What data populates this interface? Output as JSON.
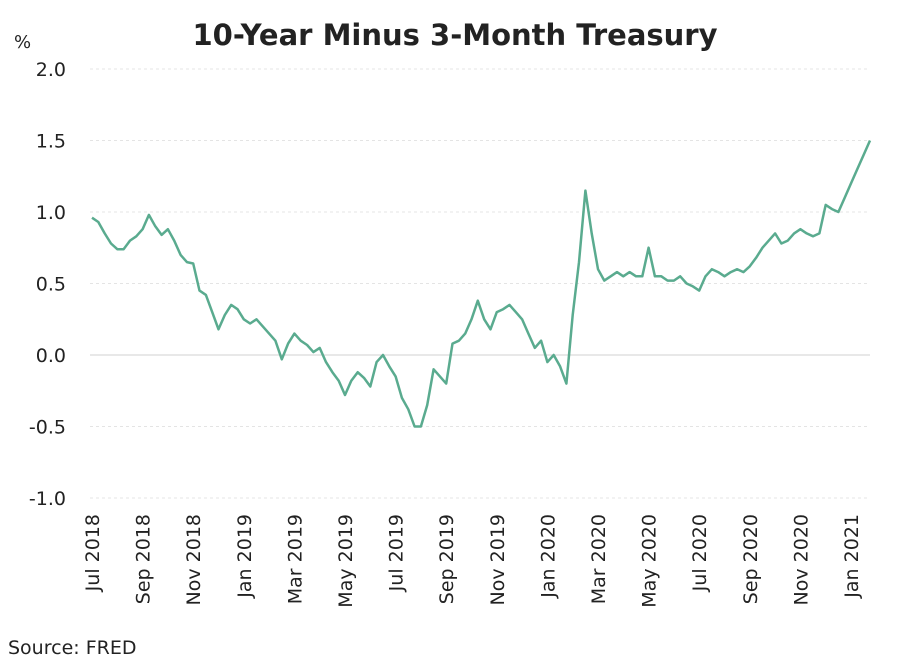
{
  "chart_data": {
    "type": "line",
    "title": "10-Year Minus 3-Month Treasury",
    "y_unit": "%",
    "source": "Source: FRED",
    "categories": [
      "Jul 2018",
      null,
      null,
      null,
      null,
      null,
      null,
      null,
      "Sep 2018",
      null,
      null,
      null,
      null,
      null,
      null,
      null,
      "Nov 2018",
      null,
      null,
      null,
      null,
      null,
      null,
      null,
      "Jan 2019",
      null,
      null,
      null,
      null,
      null,
      null,
      null,
      "Mar 2019",
      null,
      null,
      null,
      null,
      null,
      null,
      null,
      "May 2019",
      null,
      null,
      null,
      null,
      null,
      null,
      null,
      "Jul 2019",
      null,
      null,
      null,
      null,
      null,
      null,
      null,
      "Sep 2019",
      null,
      null,
      null,
      null,
      null,
      null,
      null,
      "Nov 2019",
      null,
      null,
      null,
      null,
      null,
      null,
      null,
      "Jan 2020",
      null,
      null,
      null,
      null,
      null,
      null,
      null,
      "Mar 2020",
      null,
      null,
      null,
      null,
      null,
      null,
      null,
      "May 2020",
      null,
      null,
      null,
      null,
      null,
      null,
      null,
      "Jul 2020",
      null,
      null,
      null,
      null,
      null,
      null,
      null,
      "Sep 2020",
      null,
      null,
      null,
      null,
      null,
      null,
      null,
      "Nov 2020",
      null,
      null,
      null,
      null,
      null,
      null,
      null,
      "Jan 2021",
      null,
      null,
      null
    ],
    "series": [
      {
        "name": "10-Year Minus 3-Month Treasury",
        "color": "#5aab8f",
        "values": [
          0.96,
          0.93,
          0.85,
          0.78,
          0.74,
          0.74,
          0.8,
          0.83,
          0.88,
          0.98,
          0.9,
          0.84,
          0.88,
          0.8,
          0.7,
          0.65,
          0.64,
          0.45,
          0.42,
          0.3,
          0.18,
          0.28,
          0.35,
          0.32,
          0.25,
          0.22,
          0.25,
          0.2,
          0.15,
          0.1,
          -0.03,
          0.08,
          0.15,
          0.1,
          0.07,
          0.02,
          0.05,
          -0.05,
          -0.12,
          -0.18,
          -0.28,
          -0.18,
          -0.12,
          -0.16,
          -0.22,
          -0.05,
          0.0,
          -0.08,
          -0.15,
          -0.3,
          -0.38,
          -0.5,
          -0.5,
          -0.35,
          -0.1,
          -0.15,
          -0.2,
          0.08,
          0.1,
          0.15,
          0.25,
          0.38,
          0.25,
          0.18,
          0.3,
          0.32,
          0.35,
          0.3,
          0.25,
          0.15,
          0.05,
          0.1,
          -0.05,
          0.0,
          -0.08,
          -0.2,
          0.28,
          0.65,
          1.15,
          0.85,
          0.6,
          0.52,
          0.55,
          0.58,
          0.55,
          0.58,
          0.55,
          0.55,
          0.75,
          0.55,
          0.55,
          0.52,
          0.52,
          0.55,
          0.5,
          0.48,
          0.45,
          0.55,
          0.6,
          0.58,
          0.55,
          0.58,
          0.6,
          0.58,
          0.62,
          0.68,
          0.75,
          0.8,
          0.85,
          0.78,
          0.8,
          0.85,
          0.88,
          0.85,
          0.83,
          0.85,
          1.05,
          1.02,
          1.0,
          1.1,
          1.2,
          1.3,
          1.4,
          1.5
        ]
      }
    ],
    "ylim": [
      -1.0,
      2.0
    ],
    "yticks": [
      {
        "value": -1.0,
        "label": "-1.0"
      },
      -0.5,
      {
        "value": 0,
        "label": "0.0"
      },
      0.5,
      {
        "value": 1.0,
        "label": "1.0"
      },
      1.5,
      {
        "value": 2.0,
        "label": "2.0"
      }
    ],
    "grid": true
  }
}
